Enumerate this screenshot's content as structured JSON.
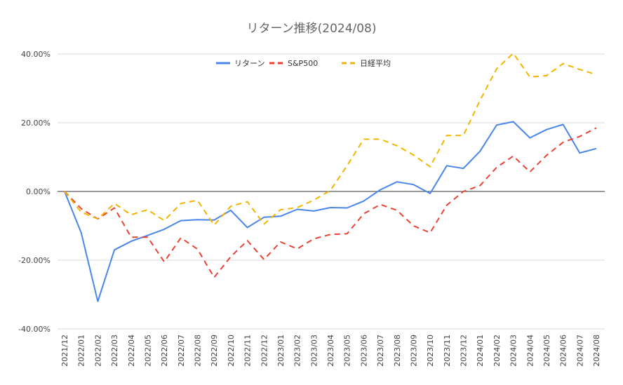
{
  "chart_data": {
    "type": "line",
    "title": "リターン推移(2024/08)",
    "xlabel": "",
    "ylabel": "",
    "ylim": [
      -0.4,
      0.4
    ],
    "yticks": [
      0.4,
      0.2,
      0.0,
      -0.2,
      -0.4
    ],
    "ytick_labels": [
      "40.00%",
      "20.00%",
      "0.00%",
      "-20.00%",
      "-40.00%"
    ],
    "grid": true,
    "legend_position": "top-center",
    "categories": [
      "2021/12",
      "2022/01",
      "2022/02",
      "2022/03",
      "2022/04",
      "2022/05",
      "2022/06",
      "2022/07",
      "2022/08",
      "2022/09",
      "2022/10",
      "2022/11",
      "2022/12",
      "2023/01",
      "2023/02",
      "2023/03",
      "2023/04",
      "2023/05",
      "2023/06",
      "2023/07",
      "2023/08",
      "2023/09",
      "2023/10",
      "2023/11",
      "2023/12",
      "2024/01",
      "2024/02",
      "2024/03",
      "2024/04",
      "2024/05",
      "2024/06",
      "2024/07",
      "2024/08"
    ],
    "series": [
      {
        "name": "リターン",
        "color": "#4a86e8",
        "style": "solid",
        "values": [
          0.0,
          -0.12,
          -0.32,
          -0.17,
          -0.145,
          -0.128,
          -0.11,
          -0.085,
          -0.082,
          -0.083,
          -0.055,
          -0.105,
          -0.075,
          -0.072,
          -0.052,
          -0.057,
          -0.047,
          -0.048,
          -0.028,
          0.005,
          0.028,
          0.02,
          -0.006,
          0.075,
          0.067,
          0.117,
          0.193,
          0.203,
          0.156,
          0.18,
          0.195,
          0.112,
          0.125
        ]
      },
      {
        "name": "S&P500",
        "color": "#ea4335",
        "style": "dashed",
        "values": [
          0.0,
          -0.05,
          -0.08,
          -0.048,
          -0.133,
          -0.133,
          -0.205,
          -0.135,
          -0.168,
          -0.25,
          -0.19,
          -0.143,
          -0.198,
          -0.147,
          -0.167,
          -0.138,
          -0.125,
          -0.123,
          -0.065,
          -0.038,
          -0.055,
          -0.1,
          -0.12,
          -0.04,
          0.0,
          0.017,
          0.07,
          0.103,
          0.057,
          0.105,
          0.143,
          0.16,
          0.185
        ]
      },
      {
        "name": "日経平均",
        "color": "#f4b400",
        "style": "dashed",
        "values": [
          0.0,
          -0.06,
          -0.08,
          -0.035,
          -0.068,
          -0.053,
          -0.085,
          -0.035,
          -0.026,
          -0.098,
          -0.043,
          -0.03,
          -0.095,
          -0.053,
          -0.047,
          -0.025,
          0.003,
          0.075,
          0.152,
          0.152,
          0.133,
          0.106,
          0.072,
          0.163,
          0.163,
          0.265,
          0.357,
          0.402,
          0.333,
          0.337,
          0.372,
          0.355,
          0.34
        ]
      }
    ]
  }
}
